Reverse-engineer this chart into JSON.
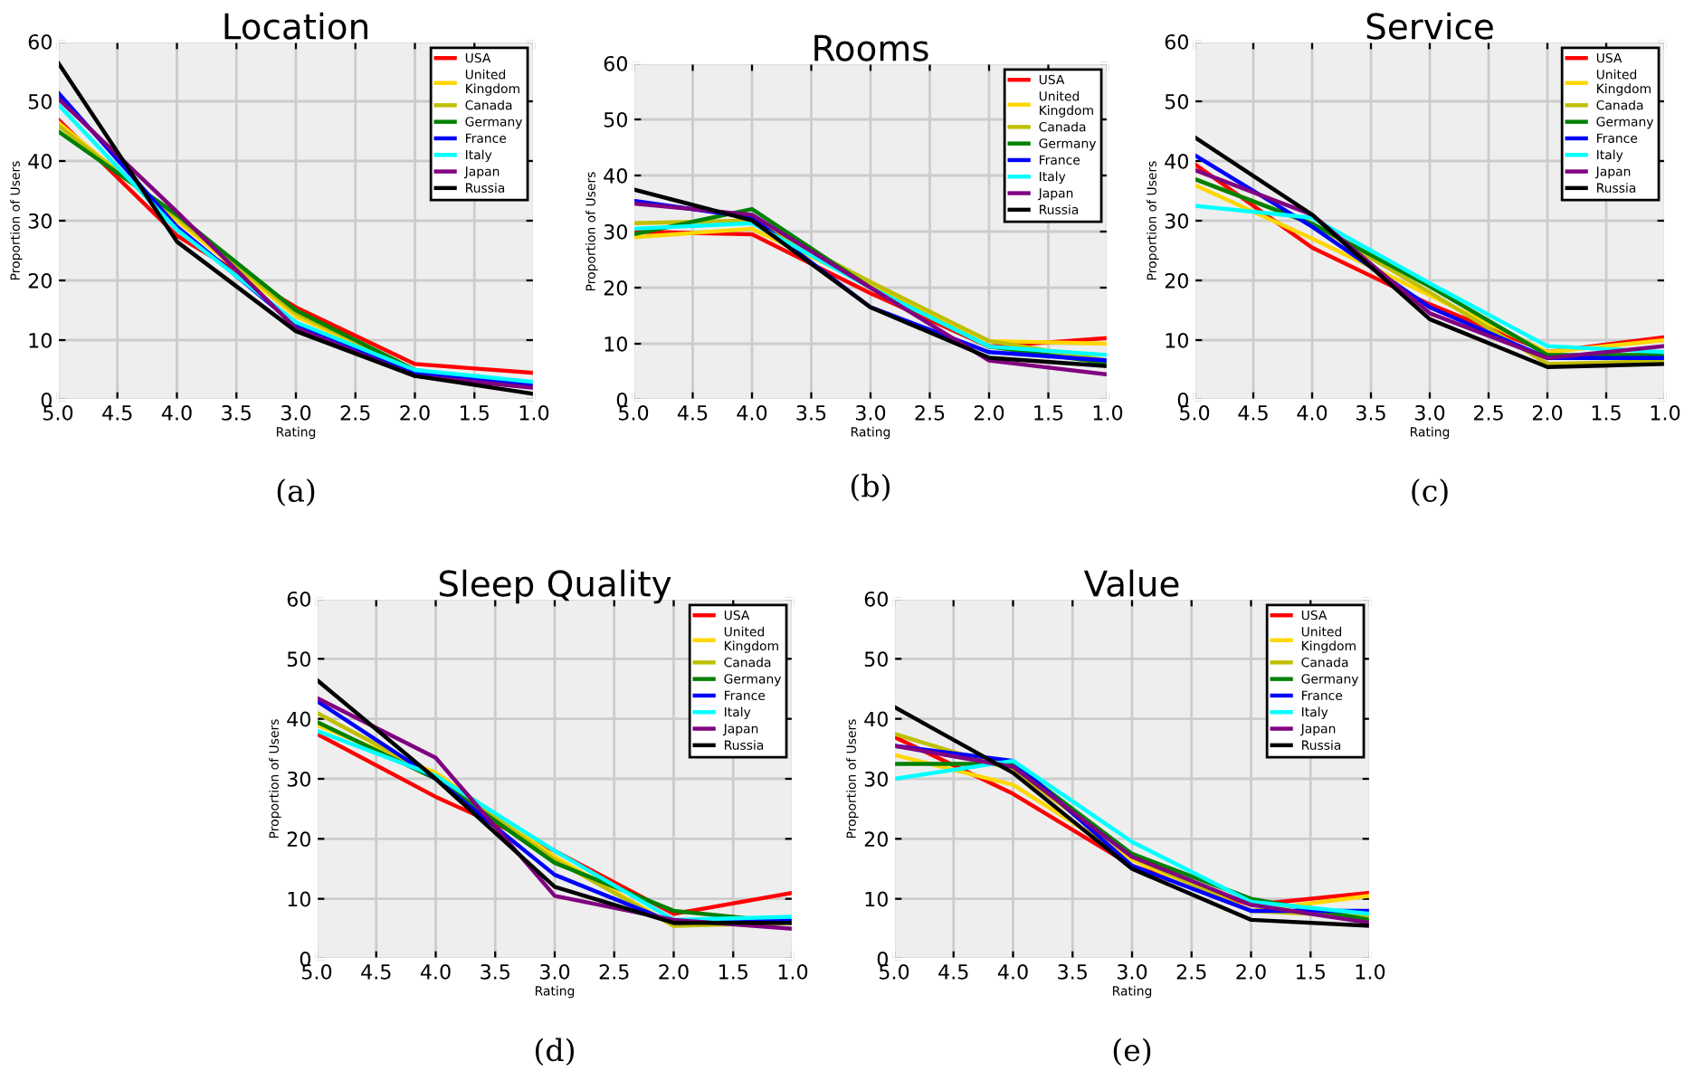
{
  "chart_data": [
    {
      "type": "line",
      "title": "Location",
      "xlabel": "Rating",
      "ylabel": "Proportion of Users",
      "annotations": [
        "(a)"
      ],
      "x": [
        5,
        4,
        3,
        2,
        1
      ],
      "xlim": [
        5,
        1
      ],
      "ylim": [
        0,
        60
      ],
      "xticks": [
        {
          "value": 5,
          "label": "5.0"
        },
        {
          "value": 4.5,
          "label": "4.5"
        },
        {
          "value": 4,
          "label": "4.0"
        },
        {
          "value": 3.5,
          "label": "3.5"
        },
        {
          "value": 3,
          "label": "3.0"
        },
        {
          "value": 2.5,
          "label": "2.5"
        },
        {
          "value": 2,
          "label": "2.0"
        },
        {
          "value": 1.5,
          "label": "1.5"
        },
        {
          "value": 1,
          "label": "1.0"
        }
      ],
      "yticks": [
        0,
        10,
        20,
        30,
        40,
        50,
        60
      ],
      "grid": true,
      "legend": "top right",
      "series": [
        {
          "name": "USA",
          "color": "#ff0000",
          "values": [
            47,
            27.5,
            15.5,
            6,
            4.5
          ]
        },
        {
          "name": "United\nKingdom",
          "color": "#ffd700",
          "values": [
            46.5,
            30,
            14,
            5,
            null
          ]
        },
        {
          "name": "Canada",
          "color": "#bfbf00",
          "values": [
            46,
            30.5,
            14.5,
            5,
            2.5
          ]
        },
        {
          "name": "Germany",
          "color": "#008000",
          "values": [
            45,
            31,
            15,
            5,
            null
          ]
        },
        {
          "name": "France",
          "color": "#0000ff",
          "values": [
            51.5,
            29,
            12.5,
            4.5,
            2.5
          ]
        },
        {
          "name": "Italy",
          "color": "#00ffff",
          "values": [
            49.5,
            28.5,
            13,
            5,
            3
          ]
        },
        {
          "name": "Japan",
          "color": "#800080",
          "values": [
            50.5,
            31.5,
            12,
            4,
            2
          ]
        },
        {
          "name": "Russia",
          "color": "#000000",
          "values": [
            56.5,
            26.5,
            11.5,
            4,
            1
          ]
        }
      ]
    },
    {
      "type": "line",
      "title": "Rooms",
      "xlabel": "Rating",
      "ylabel": "Proportion of Users",
      "annotations": [
        "(b)"
      ],
      "x": [
        5,
        4,
        3,
        2,
        1
      ],
      "xlim": [
        5,
        1
      ],
      "ylim": [
        0,
        60
      ],
      "xticks": [
        {
          "value": 5,
          "label": "5.0"
        },
        {
          "value": 4.5,
          "label": "4.5"
        },
        {
          "value": 4,
          "label": "4.0"
        },
        {
          "value": 3.5,
          "label": "3.5"
        },
        {
          "value": 3,
          "label": "3.0"
        },
        {
          "value": 2.5,
          "label": "2.5"
        },
        {
          "value": 2,
          "label": "2.0"
        },
        {
          "value": 1.5,
          "label": "1.5"
        },
        {
          "value": 1,
          "label": "1.0"
        }
      ],
      "yticks": [
        0,
        10,
        20,
        30,
        40,
        50,
        60
      ],
      "grid": true,
      "legend": "top right",
      "series": [
        {
          "name": "USA",
          "color": "#ff0000",
          "values": [
            30,
            29.5,
            19,
            9.5,
            11
          ]
        },
        {
          "name": "United\nKingdom",
          "color": "#ffd700",
          "values": [
            29,
            30.5,
            20.5,
            10.5,
            10
          ]
        },
        {
          "name": "Canada",
          "color": "#bfbf00",
          "values": [
            31.5,
            32,
            21,
            10.5,
            7
          ]
        },
        {
          "name": "Germany",
          "color": "#008000",
          "values": [
            29.5,
            34,
            20,
            9.5,
            6.5
          ]
        },
        {
          "name": "France",
          "color": "#0000ff",
          "values": [
            35.5,
            32.5,
            16.5,
            8.5,
            7
          ]
        },
        {
          "name": "Italy",
          "color": "#00ffff",
          "values": [
            30.5,
            31.5,
            20,
            9.5,
            8
          ]
        },
        {
          "name": "Japan",
          "color": "#800080",
          "values": [
            35,
            33,
            20,
            7,
            4.5
          ]
        },
        {
          "name": "Russia",
          "color": "#000000",
          "values": [
            37.5,
            32,
            16.5,
            7.5,
            6
          ]
        }
      ]
    },
    {
      "type": "line",
      "title": "Service",
      "xlabel": "Rating",
      "ylabel": "Proportion of Users",
      "annotations": [
        "(c)"
      ],
      "x": [
        5,
        4,
        3,
        2,
        1
      ],
      "xlim": [
        5,
        1
      ],
      "ylim": [
        0,
        60
      ],
      "xticks": [
        {
          "value": 5,
          "label": "5.0"
        },
        {
          "value": 4.5,
          "label": "4.5"
        },
        {
          "value": 4,
          "label": "4.0"
        },
        {
          "value": 3.5,
          "label": "3.5"
        },
        {
          "value": 3,
          "label": "3.0"
        },
        {
          "value": 2.5,
          "label": "2.5"
        },
        {
          "value": 2,
          "label": "2.0"
        },
        {
          "value": 1.5,
          "label": "1.5"
        },
        {
          "value": 1,
          "label": "1.0"
        }
      ],
      "yticks": [
        0,
        10,
        20,
        30,
        40,
        50,
        60
      ],
      "grid": true,
      "legend": "top right",
      "series": [
        {
          "name": "USA",
          "color": "#ff0000",
          "values": [
            39.5,
            25.5,
            16,
            8,
            10.5
          ]
        },
        {
          "name": "United\nKingdom",
          "color": "#ffd700",
          "values": [
            36,
            27,
            17.5,
            8,
            10
          ]
        },
        {
          "name": "Canada",
          "color": "#bfbf00",
          "values": [
            37,
            29.5,
            18,
            6,
            6.5
          ]
        },
        {
          "name": "Germany",
          "color": "#008000",
          "values": [
            37,
            29.5,
            19,
            7.5,
            7.5
          ]
        },
        {
          "name": "France",
          "color": "#0000ff",
          "values": [
            41,
            29,
            15.5,
            7,
            7
          ]
        },
        {
          "name": "Italy",
          "color": "#00ffff",
          "values": [
            32.5,
            30.5,
            19.5,
            9,
            8
          ]
        },
        {
          "name": "Japan",
          "color": "#800080",
          "values": [
            38.5,
            31,
            14.5,
            7,
            9
          ]
        },
        {
          "name": "Russia",
          "color": "#000000",
          "values": [
            44,
            31,
            13.5,
            5.5,
            6
          ]
        }
      ]
    },
    {
      "type": "line",
      "title": "Sleep Quality",
      "xlabel": "Rating",
      "ylabel": "Proportion of Users",
      "annotations": [
        "(d)"
      ],
      "x": [
        5,
        4,
        3,
        2,
        1
      ],
      "xlim": [
        5,
        1
      ],
      "ylim": [
        0,
        60
      ],
      "xticks": [
        {
          "value": 5,
          "label": "5.0"
        },
        {
          "value": 4.5,
          "label": "4.5"
        },
        {
          "value": 4,
          "label": "4.0"
        },
        {
          "value": 3.5,
          "label": "3.5"
        },
        {
          "value": 3,
          "label": "3.0"
        },
        {
          "value": 2.5,
          "label": "2.5"
        },
        {
          "value": 2,
          "label": "2.0"
        },
        {
          "value": 1.5,
          "label": "1.5"
        },
        {
          "value": 1,
          "label": "1.0"
        }
      ],
      "yticks": [
        0,
        10,
        20,
        30,
        40,
        50,
        60
      ],
      "grid": true,
      "legend": "top right",
      "series": [
        {
          "name": "USA",
          "color": "#ff0000",
          "values": [
            37.5,
            27,
            18,
            7.5,
            11
          ]
        },
        {
          "name": "United\nKingdom",
          "color": "#ffd700",
          "values": [
            39,
            31,
            17,
            5.5,
            null
          ]
        },
        {
          "name": "Canada",
          "color": "#bfbf00",
          "values": [
            41,
            30.5,
            16.5,
            5.5,
            6
          ]
        },
        {
          "name": "Germany",
          "color": "#008000",
          "values": [
            39.5,
            30,
            16,
            8,
            6
          ]
        },
        {
          "name": "France",
          "color": "#0000ff",
          "values": [
            43,
            30,
            14,
            6,
            6.5
          ]
        },
        {
          "name": "Italy",
          "color": "#00ffff",
          "values": [
            38,
            30.5,
            18,
            6.5,
            7
          ]
        },
        {
          "name": "Japan",
          "color": "#800080",
          "values": [
            43.5,
            33.5,
            10.5,
            6.5,
            5
          ]
        },
        {
          "name": "Russia",
          "color": "#000000",
          "values": [
            46.5,
            30,
            12,
            6,
            6
          ]
        }
      ]
    },
    {
      "type": "line",
      "title": "Value",
      "xlabel": "Rating",
      "ylabel": "Proportion of Users",
      "annotations": [
        "(e)"
      ],
      "x": [
        5,
        4,
        3,
        2,
        1
      ],
      "xlim": [
        5,
        1
      ],
      "ylim": [
        0,
        60
      ],
      "xticks": [
        {
          "value": 5,
          "label": "5.0"
        },
        {
          "value": 4.5,
          "label": "4.5"
        },
        {
          "value": 4,
          "label": "4.0"
        },
        {
          "value": 3.5,
          "label": "3.5"
        },
        {
          "value": 3,
          "label": "3.0"
        },
        {
          "value": 2.5,
          "label": "2.5"
        },
        {
          "value": 2,
          "label": "2.0"
        },
        {
          "value": 1.5,
          "label": "1.5"
        },
        {
          "value": 1,
          "label": "1.0"
        }
      ],
      "yticks": [
        0,
        10,
        20,
        30,
        40,
        50,
        60
      ],
      "grid": true,
      "legend": "top right",
      "series": [
        {
          "name": "USA",
          "color": "#ff0000",
          "values": [
            37,
            27.5,
            15.5,
            9,
            11
          ]
        },
        {
          "name": "United\nKingdom",
          "color": "#ffd700",
          "values": [
            34,
            29,
            16.5,
            8,
            10.5
          ]
        },
        {
          "name": "Canada",
          "color": "#bfbf00",
          "values": [
            37.5,
            31.5,
            17,
            8,
            7
          ]
        },
        {
          "name": "Germany",
          "color": "#008000",
          "values": [
            32.5,
            32.5,
            17.5,
            10,
            6.5
          ]
        },
        {
          "name": "France",
          "color": "#0000ff",
          "values": [
            35.5,
            33,
            15.5,
            8,
            8
          ]
        },
        {
          "name": "Italy",
          "color": "#00ffff",
          "values": [
            30,
            33,
            19.5,
            9.5,
            7.5
          ]
        },
        {
          "name": "Japan",
          "color": "#800080",
          "values": [
            35.5,
            32,
            17,
            9,
            6
          ]
        },
        {
          "name": "Russia",
          "color": "#000000",
          "values": [
            42,
            31,
            15,
            6.5,
            5.5
          ]
        }
      ]
    }
  ]
}
